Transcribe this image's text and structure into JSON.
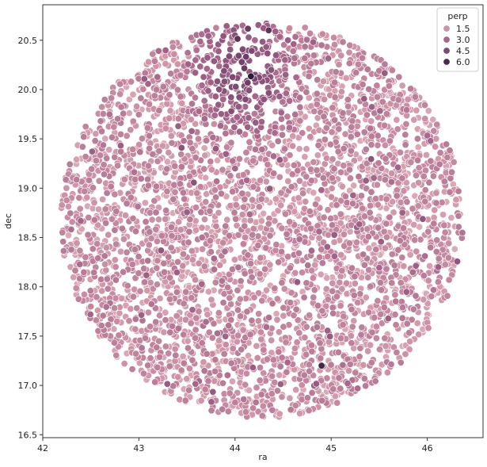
{
  "chart_data": {
    "type": "scatter",
    "xlabel": "ra",
    "ylabel": "dec",
    "xlim": [
      42.0,
      46.58
    ],
    "ylim": [
      16.47,
      20.86
    ],
    "xticks": [
      42,
      43,
      44,
      45,
      46
    ],
    "yticks": [
      16.5,
      17.0,
      17.5,
      18.0,
      18.5,
      19.0,
      19.5,
      20.0,
      20.5
    ],
    "x_tick_labels": [
      "42",
      "43",
      "44",
      "45",
      "46"
    ],
    "y_tick_labels": [
      "16.5",
      "17.0",
      "17.5",
      "18.0",
      "18.5",
      "19.0",
      "19.5",
      "20.0",
      "20.5"
    ],
    "hue_variable": "perp",
    "hue_range": [
      0.0,
      7.0
    ],
    "legend": {
      "title": "perp",
      "placement": "top-right",
      "entries": [
        {
          "label": "1.5",
          "value": 1.5,
          "color": "#c793a6"
        },
        {
          "label": "3.0",
          "value": 3.0,
          "color": "#a6678a"
        },
        {
          "label": "4.5",
          "value": 4.5,
          "color": "#7d4b72"
        },
        {
          "label": "6.0",
          "value": 6.0,
          "color": "#4c2a4f"
        }
      ]
    },
    "footprint": {
      "center_ra": 44.28,
      "center_dec": 18.68,
      "radius": 2.05
    },
    "density_peak": {
      "ra": 44.1,
      "dec": 20.2
    },
    "series": [
      {
        "points": [
          [
            42.25,
            18.6,
            1.2
          ],
          [
            42.3,
            18.9,
            2.1
          ],
          [
            42.35,
            18.2,
            1.5
          ],
          [
            42.4,
            19.3,
            1.0
          ],
          [
            42.5,
            17.8,
            2.4
          ],
          [
            42.6,
            19.6,
            1.6
          ],
          [
            42.8,
            17.4,
            2.0
          ],
          [
            42.9,
            19.9,
            1.1
          ],
          [
            43.1,
            17.1,
            1.7
          ],
          [
            43.2,
            20.1,
            2.6
          ],
          [
            43.5,
            16.9,
            1.3
          ],
          [
            43.6,
            20.4,
            3.2
          ],
          [
            43.9,
            16.8,
            2.2
          ],
          [
            44.0,
            20.55,
            4.8
          ],
          [
            44.3,
            16.75,
            1.6
          ],
          [
            44.35,
            20.6,
            5.9
          ],
          [
            44.6,
            16.8,
            2.0
          ],
          [
            44.55,
            20.5,
            4.1
          ],
          [
            44.9,
            16.9,
            1.5
          ],
          [
            44.9,
            20.45,
            3.0
          ],
          [
            45.3,
            17.1,
            2.3
          ],
          [
            45.2,
            20.3,
            2.1
          ],
          [
            45.6,
            17.4,
            1.4
          ],
          [
            45.6,
            20.0,
            1.9
          ],
          [
            45.9,
            17.8,
            2.5
          ],
          [
            45.9,
            19.6,
            1.2
          ],
          [
            46.1,
            18.2,
            1.8
          ],
          [
            46.1,
            19.2,
            2.7
          ],
          [
            46.25,
            18.7,
            1.1
          ],
          [
            44.9,
            17.2,
            6.5
          ],
          [
            43.8,
            19.4,
            4.3
          ],
          [
            44.3,
            19.9,
            4.6
          ],
          [
            44.0,
            19.2,
            3.6
          ],
          [
            43.5,
            18.3,
            2.2
          ],
          [
            44.8,
            18.5,
            1.6
          ],
          [
            45.2,
            19.1,
            2.4
          ]
        ]
      }
    ]
  }
}
